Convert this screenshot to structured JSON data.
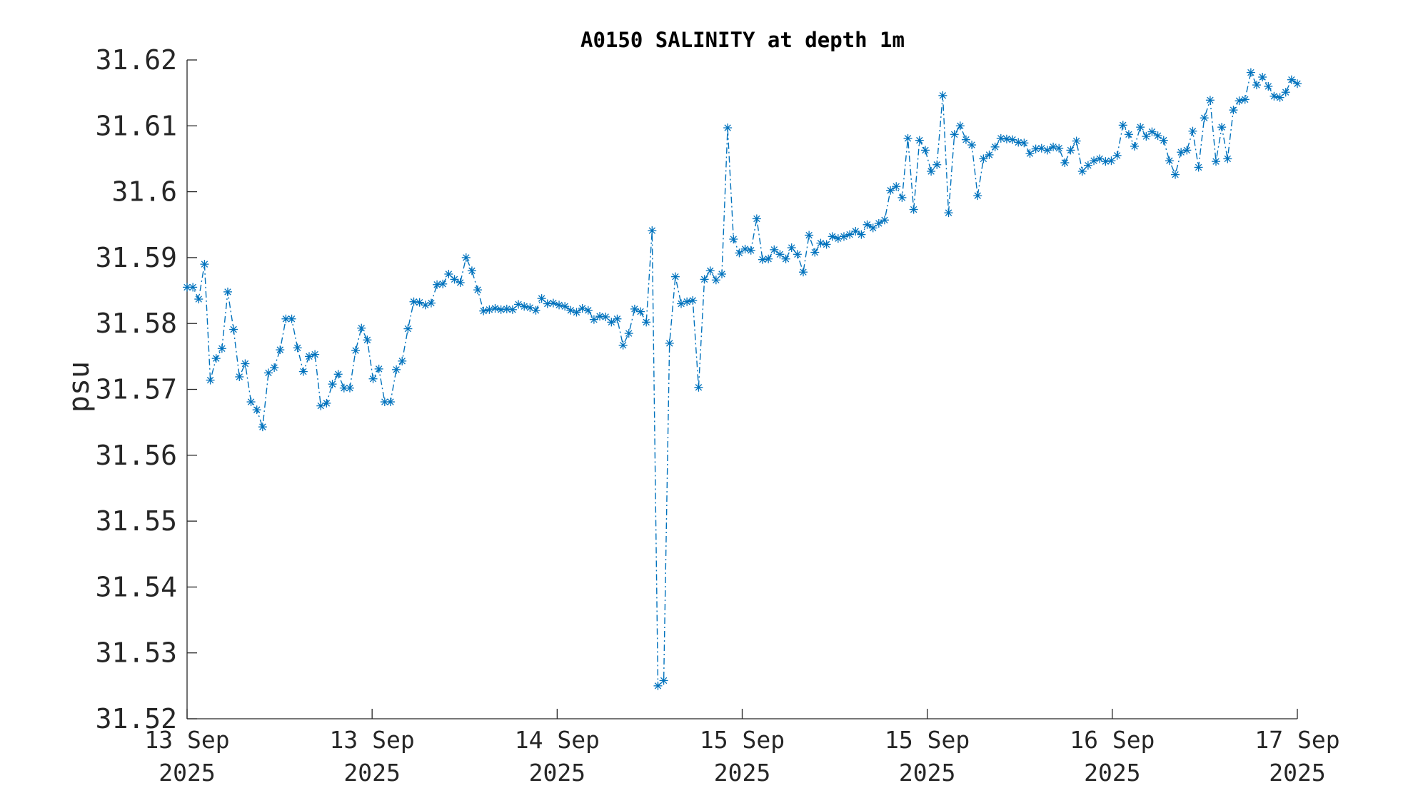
{
  "chart_data": {
    "type": "line",
    "title": "A0150 SALINITY at depth 1m",
    "xlabel": "",
    "ylabel": "psu",
    "ylim": [
      31.52,
      31.62
    ],
    "yticks": [
      "31.52",
      "31.53",
      "31.54",
      "31.55",
      "31.56",
      "31.57",
      "31.58",
      "31.59",
      "31.6",
      "31.61",
      "31.62"
    ],
    "xticks": [
      {
        "day": "13 Sep",
        "year": "2025"
      },
      {
        "day": "13 Sep",
        "year": "2025"
      },
      {
        "day": "14 Sep",
        "year": "2025"
      },
      {
        "day": "15 Sep",
        "year": "2025"
      },
      {
        "day": "15 Sep",
        "year": "2025"
      },
      {
        "day": "16 Sep",
        "year": "2025"
      },
      {
        "day": "17 Sep",
        "year": "2025"
      }
    ],
    "grid": false,
    "legend": "none",
    "marker": "asterisk",
    "line_style": "dash-dot",
    "color": "#0072BD",
    "series": [
      {
        "values": [
          31.5855,
          31.5855,
          31.5837,
          31.589,
          31.5714,
          31.5747,
          31.5762,
          31.5848,
          31.5791,
          31.5719,
          31.5739,
          31.5681,
          31.5669,
          31.5643,
          31.5725,
          31.5733,
          31.576,
          31.5807,
          31.5807,
          31.5763,
          31.5727,
          31.575,
          31.5753,
          31.5675,
          31.5679,
          31.5708,
          31.5723,
          31.5702,
          31.5702,
          31.5759,
          31.5793,
          31.5775,
          31.5716,
          31.5731,
          31.5681,
          31.5681,
          31.573,
          31.5743,
          31.5792,
          31.5833,
          31.5832,
          31.5828,
          31.5831,
          31.5859,
          31.586,
          31.5875,
          31.5867,
          31.5862,
          31.59,
          31.588,
          31.5851,
          31.5819,
          31.5821,
          31.5823,
          31.5821,
          31.5822,
          31.5821,
          31.5829,
          31.5826,
          31.5824,
          31.582,
          31.5838,
          31.583,
          31.5831,
          31.5828,
          31.5826,
          31.582,
          31.5817,
          31.5823,
          31.582,
          31.5806,
          31.5811,
          31.581,
          31.5802,
          31.5807,
          31.5767,
          31.5785,
          31.5822,
          31.5818,
          31.5802,
          31.5941,
          31.525,
          31.5258,
          31.577,
          31.5871,
          31.583,
          31.5833,
          31.5835,
          31.5703,
          31.5867,
          31.588,
          31.5866,
          31.5875,
          31.6097,
          31.5928,
          31.5907,
          31.5913,
          31.5911,
          31.5959,
          31.5897,
          31.5898,
          31.5912,
          31.5905,
          31.5898,
          31.5915,
          31.5905,
          31.5878,
          31.5934,
          31.5908,
          31.5922,
          31.592,
          31.5932,
          31.5929,
          31.5932,
          31.5935,
          31.594,
          31.5935,
          31.595,
          31.5945,
          31.5952,
          31.5957,
          31.6002,
          31.6008,
          31.5991,
          31.6081,
          31.5973,
          31.6078,
          31.6063,
          31.6031,
          31.6041,
          31.6146,
          31.5968,
          31.6087,
          31.61,
          31.6079,
          31.6071,
          31.5994,
          31.605,
          31.6056,
          31.6068,
          31.6081,
          31.608,
          31.6079,
          31.6075,
          31.6074,
          31.6058,
          31.6065,
          31.6066,
          31.6063,
          31.6068,
          31.6066,
          31.6044,
          31.6063,
          31.6077,
          31.6031,
          31.604,
          31.6047,
          31.605,
          31.6046,
          31.6047,
          31.6055,
          31.6101,
          31.6087,
          31.6069,
          31.6098,
          31.6084,
          31.6091,
          31.6085,
          31.6078,
          31.6047,
          31.6026,
          31.606,
          31.6063,
          31.6092,
          31.6037,
          31.6112,
          31.6139,
          31.6046,
          31.6098,
          31.605,
          31.6124,
          31.6138,
          31.614,
          31.6181,
          31.6162,
          31.6174,
          31.616,
          31.6145,
          31.6143,
          31.6151,
          31.617,
          31.6164
        ]
      }
    ]
  }
}
